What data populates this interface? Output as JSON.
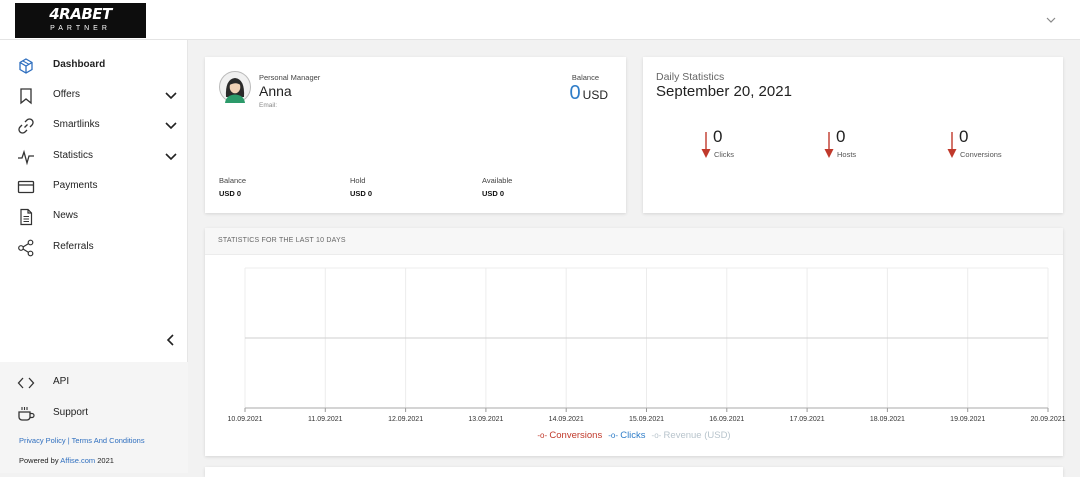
{
  "brand": {
    "name": "4RABET",
    "sub": "PARTNER"
  },
  "sidebar": {
    "items": [
      {
        "label": "Dashboard",
        "icon": "cube-icon"
      },
      {
        "label": "Offers",
        "icon": "bookmark-icon"
      },
      {
        "label": "Smartlinks",
        "icon": "link-icon"
      },
      {
        "label": "Statistics",
        "icon": "pulse-icon"
      },
      {
        "label": "Payments",
        "icon": "credit-card-icon"
      },
      {
        "label": "News",
        "icon": "document-icon"
      },
      {
        "label": "Referrals",
        "icon": "share-icon"
      }
    ],
    "bottom_items": [
      {
        "label": "API",
        "icon": "code-icon"
      },
      {
        "label": "Support",
        "icon": "coffee-cup-icon"
      }
    ],
    "privacy_label": "Privacy Policy",
    "terms_label": "Terms And Conditions",
    "powered_prefix": "Powered by",
    "powered_brand": "Affise.com",
    "powered_year": "2021"
  },
  "manager": {
    "label": "Personal Manager",
    "name": "Anna",
    "email_label": "Email:",
    "balance_label": "Balance",
    "balance_value": "0",
    "balance_currency": "USD",
    "stats": [
      {
        "label": "Balance",
        "value": "USD 0"
      },
      {
        "label": "Hold",
        "value": "USD 0"
      },
      {
        "label": "Available",
        "value": "USD 0"
      }
    ]
  },
  "daily": {
    "label": "Daily Statistics",
    "date": "September 20, 2021",
    "metrics": [
      {
        "value": "0",
        "label": "Clicks"
      },
      {
        "value": "0",
        "label": "Hosts"
      },
      {
        "value": "0",
        "label": "Conversions"
      }
    ]
  },
  "chart_section": {
    "title": "STATISTICS FOR THE LAST 10 DAYS"
  },
  "colors": {
    "accent": "#2f7dc8",
    "down_arrow": "#c0392b",
    "conversions": "#c0392b",
    "clicks": "#2f7dc8",
    "revenue": "#b8c4cc"
  },
  "chart_data": {
    "type": "line",
    "x": [
      "10.09.2021",
      "11.09.2021",
      "12.09.2021",
      "13.09.2021",
      "14.09.2021",
      "15.09.2021",
      "16.09.2021",
      "17.09.2021",
      "18.09.2021",
      "19.09.2021",
      "20.09.2021"
    ],
    "series": [
      {
        "name": "Conversions",
        "values": [
          0,
          0,
          0,
          0,
          0,
          0,
          0,
          0,
          0,
          0,
          0
        ],
        "color": "#c0392b"
      },
      {
        "name": "Clicks",
        "values": [
          0,
          0,
          0,
          0,
          0,
          0,
          0,
          0,
          0,
          0,
          0
        ],
        "color": "#2f7dc8"
      },
      {
        "name": "Revenue (USD)",
        "values": [
          0,
          0,
          0,
          0,
          0,
          0,
          0,
          0,
          0,
          0,
          0
        ],
        "color": "#b8c4cc",
        "disabled": true
      }
    ],
    "grid": true,
    "legend": "bottom-center"
  }
}
